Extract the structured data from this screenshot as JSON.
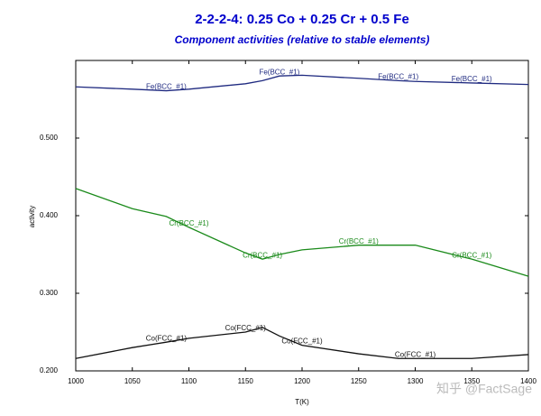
{
  "chart_data": {
    "type": "line",
    "title": "2-2-2-4: 0.25 Co + 0.25 Cr + 0.5 Fe",
    "subtitle": "Component activities (relative to stable elements)",
    "x_label": "T(K)",
    "y_label": "activity",
    "watermark": "知乎 @FactSage",
    "x": [
      1000,
      1050,
      1080,
      1100,
      1150,
      1165,
      1180,
      1200,
      1250,
      1285,
      1300,
      1350,
      1400
    ],
    "series": [
      {
        "name": "Fe(BCC_#1)",
        "color": "#1f2a80",
        "values": [
          0.566,
          0.563,
          0.561,
          0.563,
          0.57,
          0.574,
          0.58,
          0.581,
          0.577,
          0.574,
          0.573,
          0.571,
          0.569
        ]
      },
      {
        "name": "Cr(BCC_#1)",
        "color": "#1a8a1a",
        "values": [
          0.435,
          0.409,
          0.399,
          0.385,
          0.352,
          0.344,
          0.35,
          0.356,
          0.362,
          0.362,
          0.362,
          0.344,
          0.322
        ]
      },
      {
        "name": "Co(FCC_#1)",
        "color": "#111111",
        "values": [
          0.216,
          0.23,
          0.237,
          0.242,
          0.25,
          0.256,
          0.245,
          0.233,
          0.222,
          0.216,
          0.216,
          0.216,
          0.221
        ]
      }
    ],
    "xlim": [
      1000,
      1400
    ],
    "xticks": [
      1000,
      1050,
      1100,
      1150,
      1200,
      1250,
      1300,
      1350,
      1400
    ],
    "ylim": [
      0.2,
      0.6
    ],
    "yticks": [
      {
        "value": 0.2,
        "label": "0.200"
      },
      {
        "value": 0.3,
        "label": "0.300"
      },
      {
        "value": 0.4,
        "label": "0.400"
      },
      {
        "value": 0.5,
        "label": "0.500"
      }
    ]
  }
}
